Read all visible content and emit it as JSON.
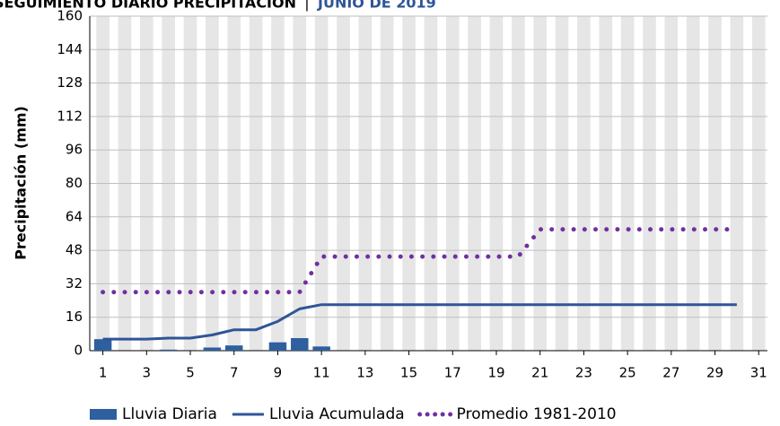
{
  "chart_data": {
    "type": "combo",
    "title": "SEGUIMIENTO DIARIO PRECIPITACIÓN",
    "title_separator": "|",
    "subtitle": "JUNIO DE 2019",
    "y_label": "Precipitación (mm)",
    "x": [
      1,
      2,
      3,
      4,
      5,
      6,
      7,
      8,
      9,
      10,
      11,
      12,
      13,
      14,
      15,
      16,
      17,
      18,
      19,
      20,
      21,
      22,
      23,
      24,
      25,
      26,
      27,
      28,
      29,
      30
    ],
    "xlim": [
      0.4,
      31.4
    ],
    "xticks": [
      1,
      3,
      5,
      7,
      9,
      11,
      13,
      15,
      17,
      19,
      21,
      23,
      25,
      27,
      29,
      31
    ],
    "ylim": [
      0,
      160
    ],
    "yticks": [
      0,
      16,
      32,
      48,
      64,
      80,
      96,
      112,
      128,
      144,
      160
    ],
    "grid": true,
    "legend": "bottom",
    "series": [
      {
        "name": "Lluvia Diaria",
        "style": "bar",
        "color": "#2e5f9e",
        "values": [
          5.5,
          0,
          0,
          0.5,
          0,
          1.5,
          2.5,
          0,
          4,
          6,
          2,
          0,
          0,
          0,
          0,
          0,
          0,
          0,
          0,
          0,
          0,
          0,
          0,
          0,
          0,
          0,
          0,
          0,
          0,
          0
        ]
      },
      {
        "name": "Lluvia Acumulada",
        "style": "line",
        "color": "#2f5597",
        "values": [
          5.5,
          5.5,
          5.5,
          6,
          6,
          7.5,
          10,
          10,
          14,
          20,
          22,
          22,
          22,
          22,
          22,
          22,
          22,
          22,
          22,
          22,
          22,
          22,
          22,
          22,
          22,
          22,
          22,
          22,
          22,
          22
        ]
      },
      {
        "name": "Promedio 1981-2010",
        "style": "dots",
        "color": "#7030a0",
        "values": [
          28,
          28,
          28,
          28,
          28,
          28,
          28,
          28,
          28,
          28,
          45,
          45,
          45,
          45,
          45,
          45,
          45,
          45,
          45,
          45,
          58,
          58,
          58,
          58,
          58,
          58,
          58,
          58,
          58,
          58
        ]
      }
    ]
  }
}
